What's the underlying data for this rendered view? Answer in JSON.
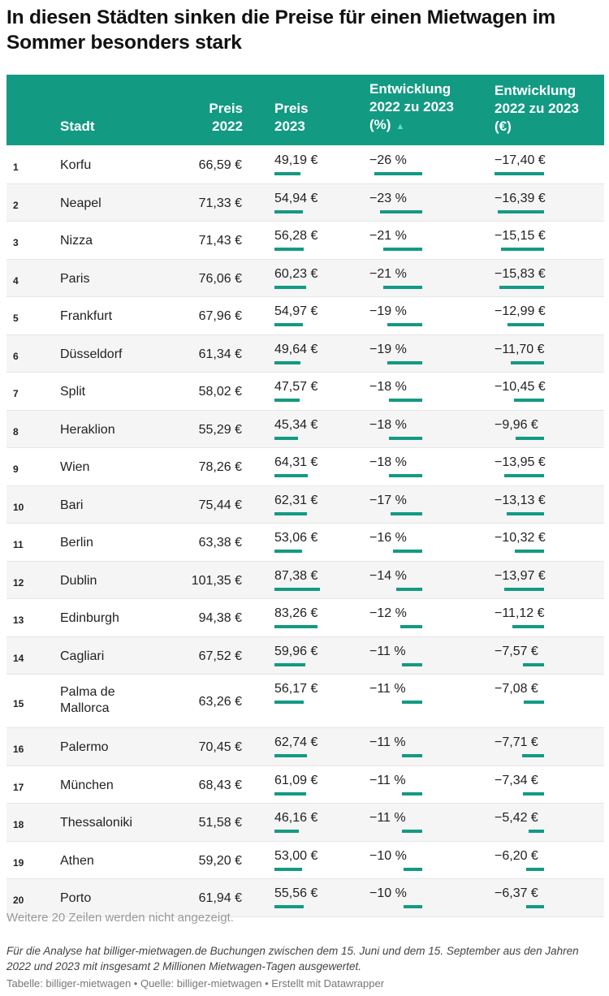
{
  "chart_data": {
    "type": "table",
    "title": "In diesen Städten sinken die Preise für einen Mietwagen im Sommer besonders stark",
    "columns": [
      "",
      "Stadt",
      "Preis 2022",
      "Preis 2023",
      "Entwicklung 2022 zu 2023 (%)",
      "Entwicklung 2022 zu 2023 (€)"
    ],
    "sort_indicator": "▲",
    "colors": {
      "accent": "#139a83"
    },
    "rows": [
      {
        "rank": "1",
        "city": "Korfu",
        "p22": "66,59 €",
        "p23": "49,19 €",
        "pct": "−26 %",
        "eur": "−17,40 €",
        "p23_val": 49.19,
        "pct_val": -26,
        "eur_val": -17.4
      },
      {
        "rank": "2",
        "city": "Neapel",
        "p22": "71,33 €",
        "p23": "54,94 €",
        "pct": "−23 %",
        "eur": "−16,39 €",
        "p23_val": 54.94,
        "pct_val": -23,
        "eur_val": -16.39
      },
      {
        "rank": "3",
        "city": "Nizza",
        "p22": "71,43 €",
        "p23": "56,28 €",
        "pct": "−21 %",
        "eur": "−15,15 €",
        "p23_val": 56.28,
        "pct_val": -21,
        "eur_val": -15.15
      },
      {
        "rank": "4",
        "city": "Paris",
        "p22": "76,06 €",
        "p23": "60,23 €",
        "pct": "−21 %",
        "eur": "−15,83 €",
        "p23_val": 60.23,
        "pct_val": -21,
        "eur_val": -15.83
      },
      {
        "rank": "5",
        "city": "Frankfurt",
        "p22": "67,96 €",
        "p23": "54,97 €",
        "pct": "−19 %",
        "eur": "−12,99 €",
        "p23_val": 54.97,
        "pct_val": -19,
        "eur_val": -12.99
      },
      {
        "rank": "6",
        "city": "Düsseldorf",
        "p22": "61,34 €",
        "p23": "49,64 €",
        "pct": "−19 %",
        "eur": "−11,70 €",
        "p23_val": 49.64,
        "pct_val": -19,
        "eur_val": -11.7
      },
      {
        "rank": "7",
        "city": "Split",
        "p22": "58,02 €",
        "p23": "47,57 €",
        "pct": "−18 %",
        "eur": "−10,45 €",
        "p23_val": 47.57,
        "pct_val": -18,
        "eur_val": -10.45
      },
      {
        "rank": "8",
        "city": "Heraklion",
        "p22": "55,29 €",
        "p23": "45,34 €",
        "pct": "−18 %",
        "eur": "−9,96 €",
        "p23_val": 45.34,
        "pct_val": -18,
        "eur_val": -9.96
      },
      {
        "rank": "9",
        "city": "Wien",
        "p22": "78,26 €",
        "p23": "64,31 €",
        "pct": "−18 %",
        "eur": "−13,95 €",
        "p23_val": 64.31,
        "pct_val": -18,
        "eur_val": -13.95
      },
      {
        "rank": "10",
        "city": "Bari",
        "p22": "75,44 €",
        "p23": "62,31 €",
        "pct": "−17 %",
        "eur": "−13,13 €",
        "p23_val": 62.31,
        "pct_val": -17,
        "eur_val": -13.13
      },
      {
        "rank": "11",
        "city": "Berlin",
        "p22": "63,38 €",
        "p23": "53,06 €",
        "pct": "−16 %",
        "eur": "−10,32 €",
        "p23_val": 53.06,
        "pct_val": -16,
        "eur_val": -10.32
      },
      {
        "rank": "12",
        "city": "Dublin",
        "p22": "101,35 €",
        "p23": "87,38 €",
        "pct": "−14 %",
        "eur": "−13,97 €",
        "p23_val": 87.38,
        "pct_val": -14,
        "eur_val": -13.97
      },
      {
        "rank": "13",
        "city": "Edinburgh",
        "p22": "94,38 €",
        "p23": "83,26 €",
        "pct": "−12 %",
        "eur": "−11,12 €",
        "p23_val": 83.26,
        "pct_val": -12,
        "eur_val": -11.12
      },
      {
        "rank": "14",
        "city": "Cagliari",
        "p22": "67,52 €",
        "p23": "59,96 €",
        "pct": "−11 %",
        "eur": "−7,57 €",
        "p23_val": 59.96,
        "pct_val": -11,
        "eur_val": -7.57
      },
      {
        "rank": "15",
        "city": "Palma de Mallorca",
        "p22": "63,26 €",
        "p23": "56,17 €",
        "pct": "−11 %",
        "eur": "−7,08 €",
        "p23_val": 56.17,
        "pct_val": -11,
        "eur_val": -7.08
      },
      {
        "rank": "16",
        "city": "Palermo",
        "p22": "70,45 €",
        "p23": "62,74 €",
        "pct": "−11 %",
        "eur": "−7,71 €",
        "p23_val": 62.74,
        "pct_val": -11,
        "eur_val": -7.71
      },
      {
        "rank": "17",
        "city": "München",
        "p22": "68,43 €",
        "p23": "61,09 €",
        "pct": "−11 %",
        "eur": "−7,34 €",
        "p23_val": 61.09,
        "pct_val": -11,
        "eur_val": -7.34
      },
      {
        "rank": "18",
        "city": "Thessaloniki",
        "p22": "51,58 €",
        "p23": "46,16 €",
        "pct": "−11 %",
        "eur": "−5,42 €",
        "p23_val": 46.16,
        "pct_val": -11,
        "eur_val": -5.42
      },
      {
        "rank": "19",
        "city": "Athen",
        "p22": "59,20 €",
        "p23": "53,00 €",
        "pct": "−10 %",
        "eur": "−6,20 €",
        "p23_val": 53.0,
        "pct_val": -10,
        "eur_val": -6.2
      },
      {
        "rank": "20",
        "city": "Porto",
        "p22": "61,94 €",
        "p23": "55,56 €",
        "pct": "−10 %",
        "eur": "−6,37 €",
        "p23_val": 55.56,
        "pct_val": -10,
        "eur_val": -6.37
      }
    ],
    "more_rows_note": "Weitere 20 Zeilen werden nicht angezeigt.",
    "footnote": "Für die Analyse hat billiger-mietwagen.de Buchungen zwischen dem 15. Juni und dem 15. September aus den Jahren 2022 und 2023 mit insgesamt 2 Millionen Mietwagen-Tagen ausgewertet.",
    "credit": "Tabelle: billiger-mietwagen • Quelle: billiger-mietwagen • Erstellt mit Datawrapper"
  }
}
